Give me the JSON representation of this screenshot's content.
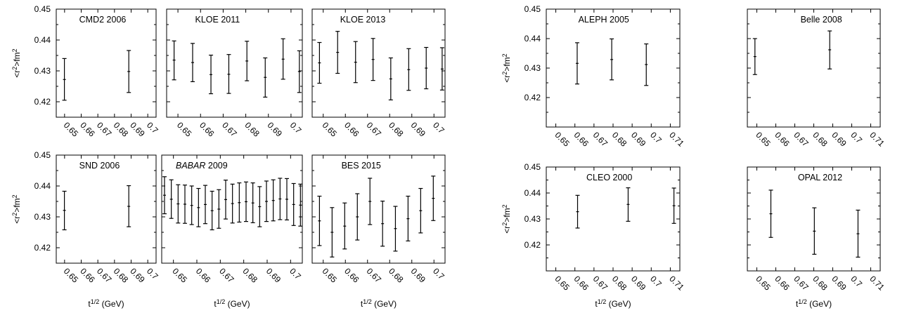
{
  "chart_data": [
    {
      "type": "scatter",
      "title": "CMD2 2006",
      "xlabel": "",
      "ylabel": "<r2>fm2",
      "xlim": [
        0.645,
        0.705
      ],
      "ylim": [
        0.415,
        0.45
      ],
      "xticks": [
        "0.65",
        "0.66",
        "0.67",
        "0.68",
        "0.69",
        "0.7"
      ],
      "yticks": [
        "0.42",
        "0.43",
        "0.44",
        "0.45"
      ],
      "points": [
        {
          "x": 0.6499,
          "y": 0.4272,
          "lo": 0.4205,
          "hi": 0.434
        },
        {
          "x": 0.6886,
          "y": 0.4298,
          "lo": 0.423,
          "hi": 0.4366
        }
      ]
    },
    {
      "type": "scatter",
      "title": "KLOE 2011",
      "xlabel": "",
      "ylabel": "",
      "xlim": [
        0.645,
        0.705
      ],
      "ylim": [
        0.415,
        0.45
      ],
      "xticks": [
        "0.65",
        "0.66",
        "0.67",
        "0.68",
        "0.69",
        "0.7"
      ],
      "yticks": [],
      "points": [
        {
          "x": 0.6483,
          "y": 0.4335,
          "lo": 0.4271,
          "hi": 0.4397
        },
        {
          "x": 0.6565,
          "y": 0.4327,
          "lo": 0.4265,
          "hi": 0.4389
        },
        {
          "x": 0.6646,
          "y": 0.4288,
          "lo": 0.4226,
          "hi": 0.4351
        },
        {
          "x": 0.6725,
          "y": 0.4289,
          "lo": 0.4227,
          "hi": 0.4353
        },
        {
          "x": 0.6805,
          "y": 0.4332,
          "lo": 0.4268,
          "hi": 0.4396
        },
        {
          "x": 0.6886,
          "y": 0.4279,
          "lo": 0.4215,
          "hi": 0.4342
        },
        {
          "x": 0.6965,
          "y": 0.4338,
          "lo": 0.4273,
          "hi": 0.4404
        },
        {
          "x": 0.7037,
          "y": 0.4298,
          "lo": 0.423,
          "hi": 0.4365
        }
      ]
    },
    {
      "type": "scatter",
      "title": "KLOE 2013",
      "xlabel": "",
      "ylabel": "",
      "xlim": [
        0.645,
        0.705
      ],
      "ylim": [
        0.415,
        0.45
      ],
      "xticks": [
        "0.65",
        "0.66",
        "0.67",
        "0.68",
        "0.69",
        "0.7"
      ],
      "yticks": [],
      "points": [
        {
          "x": 0.6483,
          "y": 0.4326,
          "lo": 0.426,
          "hi": 0.4392
        },
        {
          "x": 0.6565,
          "y": 0.436,
          "lo": 0.4292,
          "hi": 0.4428
        },
        {
          "x": 0.6646,
          "y": 0.4328,
          "lo": 0.4262,
          "hi": 0.4395
        },
        {
          "x": 0.6725,
          "y": 0.4337,
          "lo": 0.4269,
          "hi": 0.4405
        },
        {
          "x": 0.6805,
          "y": 0.4274,
          "lo": 0.4206,
          "hi": 0.4342
        },
        {
          "x": 0.6886,
          "y": 0.4304,
          "lo": 0.4237,
          "hi": 0.4372
        },
        {
          "x": 0.6965,
          "y": 0.4309,
          "lo": 0.4242,
          "hi": 0.4376
        },
        {
          "x": 0.7037,
          "y": 0.4306,
          "lo": 0.4238,
          "hi": 0.4375
        }
      ]
    },
    {
      "type": "scatter",
      "title": "ALEPH 2005",
      "xlabel": "",
      "ylabel": "<r2>fm2",
      "xlim": [
        0.645,
        0.715
      ],
      "ylim": [
        0.41,
        0.45
      ],
      "xticks": [
        "0.65",
        "0.66",
        "0.67",
        "0.68",
        "0.69",
        "0.7",
        "0.71"
      ],
      "yticks": [
        "0.42",
        "0.43",
        "0.44",
        "0.45"
      ],
      "points": [
        {
          "x": 0.6612,
          "y": 0.4316,
          "lo": 0.4246,
          "hi": 0.4386
        },
        {
          "x": 0.6793,
          "y": 0.4329,
          "lo": 0.426,
          "hi": 0.4399
        },
        {
          "x": 0.6974,
          "y": 0.4312,
          "lo": 0.4241,
          "hi": 0.4382
        }
      ]
    },
    {
      "type": "scatter",
      "title": "Belle 2008",
      "xlabel": "",
      "ylabel": "",
      "xlim": [
        0.645,
        0.715
      ],
      "ylim": [
        0.41,
        0.45
      ],
      "xticks": [
        "0.65",
        "0.66",
        "0.67",
        "0.68",
        "0.69",
        "0.7",
        "0.71"
      ],
      "yticks": [],
      "points": [
        {
          "x": 0.649,
          "y": 0.4339,
          "lo": 0.4278,
          "hi": 0.44
        },
        {
          "x": 0.6884,
          "y": 0.4362,
          "lo": 0.4297,
          "hi": 0.4426
        }
      ]
    },
    {
      "type": "scatter",
      "title": "SND 2006",
      "xlabel": "t1/2 (GeV)",
      "ylabel": "<r2>fm2",
      "xlim": [
        0.645,
        0.705
      ],
      "ylim": [
        0.415,
        0.45
      ],
      "xticks": [
        "0.65",
        "0.66",
        "0.67",
        "0.68",
        "0.69",
        "0.7"
      ],
      "yticks": [
        "0.42",
        "0.43",
        "0.44",
        "0.45"
      ],
      "points": [
        {
          "x": 0.6499,
          "y": 0.4321,
          "lo": 0.4258,
          "hi": 0.4383
        },
        {
          "x": 0.6886,
          "y": 0.4334,
          "lo": 0.4268,
          "hi": 0.4401
        }
      ]
    },
    {
      "type": "scatter",
      "title": "BABAR 2009",
      "xlabel": "t1/2 (GeV)",
      "ylabel": "",
      "xlim": [
        0.645,
        0.705
      ],
      "ylim": [
        0.415,
        0.45
      ],
      "xticks": [
        "0.65",
        "0.66",
        "0.67",
        "0.68",
        "0.69",
        "0.7"
      ],
      "yticks": [],
      "points": [
        {
          "x": 0.6462,
          "y": 0.437,
          "lo": 0.431,
          "hi": 0.443
        },
        {
          "x": 0.6491,
          "y": 0.4357,
          "lo": 0.4295,
          "hi": 0.442
        },
        {
          "x": 0.652,
          "y": 0.4342,
          "lo": 0.428,
          "hi": 0.4404
        },
        {
          "x": 0.6549,
          "y": 0.4341,
          "lo": 0.4279,
          "hi": 0.4403
        },
        {
          "x": 0.6578,
          "y": 0.4337,
          "lo": 0.4275,
          "hi": 0.44
        },
        {
          "x": 0.6607,
          "y": 0.433,
          "lo": 0.4268,
          "hi": 0.4392
        },
        {
          "x": 0.6636,
          "y": 0.434,
          "lo": 0.4278,
          "hi": 0.4402
        },
        {
          "x": 0.6665,
          "y": 0.432,
          "lo": 0.4258,
          "hi": 0.4383
        },
        {
          "x": 0.6694,
          "y": 0.4325,
          "lo": 0.4263,
          "hi": 0.4388
        },
        {
          "x": 0.6723,
          "y": 0.4356,
          "lo": 0.4293,
          "hi": 0.4419
        },
        {
          "x": 0.6752,
          "y": 0.4343,
          "lo": 0.428,
          "hi": 0.4406
        },
        {
          "x": 0.6781,
          "y": 0.4346,
          "lo": 0.4283,
          "hi": 0.441
        },
        {
          "x": 0.681,
          "y": 0.4349,
          "lo": 0.4285,
          "hi": 0.4413
        },
        {
          "x": 0.6839,
          "y": 0.4345,
          "lo": 0.4281,
          "hi": 0.441
        },
        {
          "x": 0.6868,
          "y": 0.4333,
          "lo": 0.4268,
          "hi": 0.4398
        },
        {
          "x": 0.6897,
          "y": 0.435,
          "lo": 0.4285,
          "hi": 0.4416
        },
        {
          "x": 0.6926,
          "y": 0.4353,
          "lo": 0.4287,
          "hi": 0.442
        },
        {
          "x": 0.6955,
          "y": 0.4358,
          "lo": 0.4291,
          "hi": 0.4425
        },
        {
          "x": 0.6984,
          "y": 0.4357,
          "lo": 0.429,
          "hi": 0.4424
        },
        {
          "x": 0.7013,
          "y": 0.434,
          "lo": 0.4272,
          "hi": 0.4408
        },
        {
          "x": 0.7042,
          "y": 0.4338,
          "lo": 0.427,
          "hi": 0.4406
        }
      ]
    },
    {
      "type": "scatter",
      "title": "BES 2015",
      "xlabel": "t1/2 (GeV)",
      "ylabel": "",
      "xlim": [
        0.645,
        0.705
      ],
      "ylim": [
        0.415,
        0.45
      ],
      "xticks": [
        "0.65",
        "0.66",
        "0.67",
        "0.68",
        "0.69",
        "0.7"
      ],
      "yticks": [],
      "points": [
        {
          "x": 0.6483,
          "y": 0.4287,
          "lo": 0.4207,
          "hi": 0.4367
        },
        {
          "x": 0.654,
          "y": 0.425,
          "lo": 0.417,
          "hi": 0.433
        },
        {
          "x": 0.6597,
          "y": 0.427,
          "lo": 0.4196,
          "hi": 0.4345
        },
        {
          "x": 0.6654,
          "y": 0.43,
          "lo": 0.4225,
          "hi": 0.4375
        },
        {
          "x": 0.6711,
          "y": 0.435,
          "lo": 0.4275,
          "hi": 0.4425
        },
        {
          "x": 0.6768,
          "y": 0.4278,
          "lo": 0.4205,
          "hi": 0.4351
        },
        {
          "x": 0.6826,
          "y": 0.4262,
          "lo": 0.4189,
          "hi": 0.4334
        },
        {
          "x": 0.6883,
          "y": 0.4294,
          "lo": 0.4222,
          "hi": 0.4367
        },
        {
          "x": 0.694,
          "y": 0.432,
          "lo": 0.4248,
          "hi": 0.4392
        },
        {
          "x": 0.6997,
          "y": 0.436,
          "lo": 0.4288,
          "hi": 0.4432
        }
      ]
    },
    {
      "type": "scatter",
      "title": "CLEO 2000",
      "xlabel": "t1/2 (GeV)",
      "ylabel": "<r2>fm2",
      "xlim": [
        0.645,
        0.715
      ],
      "ylim": [
        0.41,
        0.45
      ],
      "xticks": [
        "0.65",
        "0.66",
        "0.67",
        "0.68",
        "0.69",
        "0.7",
        "0.71"
      ],
      "yticks": [
        "0.42",
        "0.43",
        "0.44",
        "0.45"
      ],
      "points": [
        {
          "x": 0.6614,
          "y": 0.4328,
          "lo": 0.4265,
          "hi": 0.4391
        },
        {
          "x": 0.6879,
          "y": 0.4356,
          "lo": 0.4291,
          "hi": 0.442
        },
        {
          "x": 0.7119,
          "y": 0.4351,
          "lo": 0.4283,
          "hi": 0.4419
        }
      ]
    },
    {
      "type": "scatter",
      "title": "OPAL 2012",
      "xlabel": "t1/2 (GeV)",
      "ylabel": "",
      "xlim": [
        0.645,
        0.715
      ],
      "ylim": [
        0.41,
        0.45
      ],
      "xticks": [
        "0.65",
        "0.66",
        "0.67",
        "0.68",
        "0.69",
        "0.7",
        "0.71"
      ],
      "yticks": [],
      "points": [
        {
          "x": 0.6574,
          "y": 0.432,
          "lo": 0.4229,
          "hi": 0.4411
        },
        {
          "x": 0.6803,
          "y": 0.4253,
          "lo": 0.4164,
          "hi": 0.4343
        },
        {
          "x": 0.7033,
          "y": 0.4243,
          "lo": 0.4153,
          "hi": 0.4334
        }
      ]
    }
  ]
}
